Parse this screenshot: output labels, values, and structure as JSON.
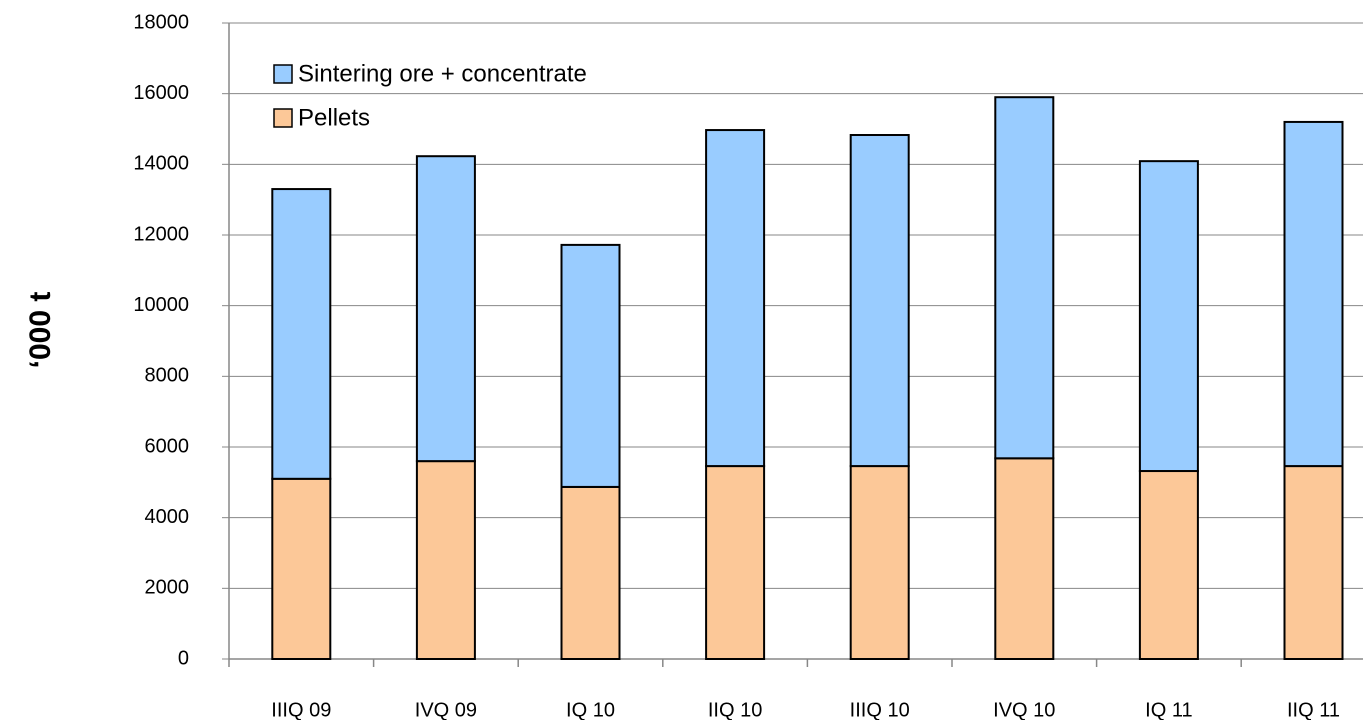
{
  "chart_data": {
    "type": "stacked_bar",
    "y_label": "‘000 t",
    "categories": [
      "IIIQ 09",
      "IVQ 09",
      "IQ 10",
      "IIQ 10",
      "IIIQ 10",
      "IVQ 10",
      "IQ 11",
      "IIQ 11"
    ],
    "series": [
      {
        "name": "Pellets",
        "color": "#fcc898",
        "values": [
          5100,
          5600,
          4870,
          5460,
          5460,
          5680,
          5320,
          5460
        ]
      },
      {
        "name": "Sintering ore + concentrate",
        "color": "#99ccff",
        "values": [
          8200,
          8630,
          6850,
          9510,
          9370,
          10220,
          8770,
          9740
        ]
      }
    ],
    "ylim": [
      0,
      18000
    ],
    "yticks": [
      0,
      2000,
      4000,
      6000,
      8000,
      10000,
      12000,
      14000,
      16000,
      18000
    ],
    "grid": true
  }
}
